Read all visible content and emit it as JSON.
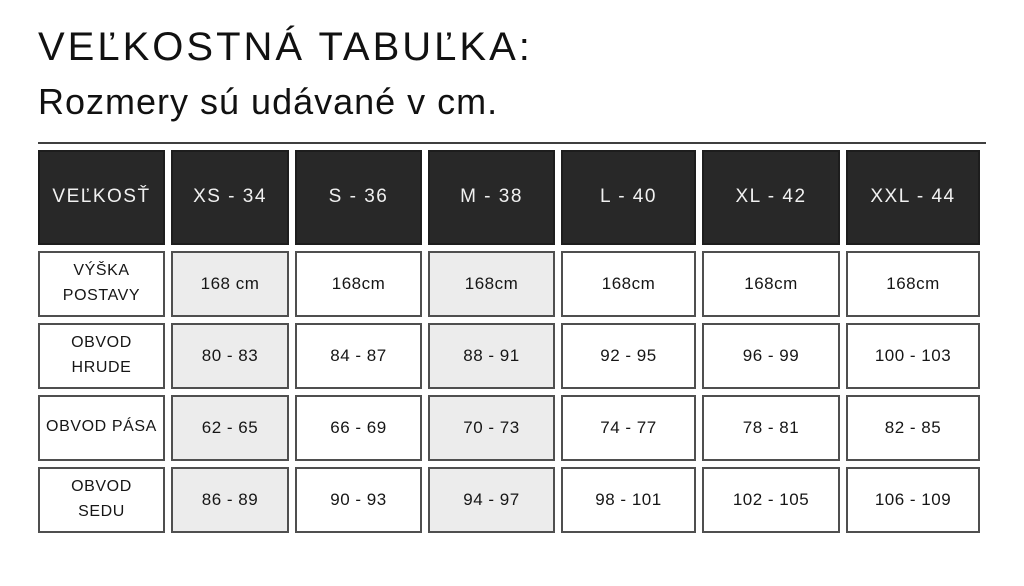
{
  "page": {
    "title": "VEĽKOSTNÁ TABUĽKA:",
    "subtitle": "Rozmery sú udávané v cm."
  },
  "colors": {
    "header_bg": "#282828",
    "header_text": "#f1f1f1",
    "cell_border": "#4f4f4f",
    "shaded_cell_bg": "#ececec",
    "body_text": "#161616"
  },
  "table": {
    "columns": [
      "VEĽKOSŤ",
      "XS - 34",
      "S - 36",
      "M - 38",
      "L - 40",
      "XL - 42",
      "XXL - 44"
    ],
    "shaded_column_indexes": [
      1,
      3
    ],
    "rows": [
      {
        "label": "VÝŠKA POSTAVY",
        "values": [
          "168 cm",
          "168cm",
          "168cm",
          "168cm",
          "168cm",
          "168cm"
        ]
      },
      {
        "label": "OBVOD HRUDE",
        "values": [
          "80 - 83",
          "84 - 87",
          "88 - 91",
          "92 - 95",
          "96 - 99",
          "100 - 103"
        ]
      },
      {
        "label": "OBVOD PÁSA",
        "values": [
          "62 - 65",
          "66 - 69",
          "70 - 73",
          "74 - 77",
          "78 - 81",
          "82 - 85"
        ]
      },
      {
        "label": "OBVOD SEDU",
        "values": [
          "86 - 89",
          "90 - 93",
          "94 - 97",
          "98 - 101",
          "102 - 105",
          "106 - 109"
        ]
      }
    ]
  }
}
